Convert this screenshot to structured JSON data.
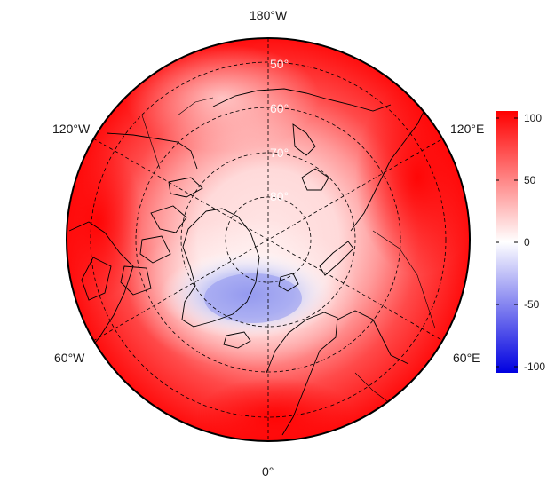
{
  "map": {
    "projection": "north-polar-stereographic",
    "center_pole": "North Pole",
    "longitude_labels": [
      {
        "id": "lon-180w",
        "text": "180°W"
      },
      {
        "id": "lon-120w",
        "text": "120°W"
      },
      {
        "id": "lon-120e",
        "text": "120°E"
      },
      {
        "id": "lon-60w",
        "text": "60°W"
      },
      {
        "id": "lon-60e",
        "text": "60°E"
      },
      {
        "id": "lon-0",
        "text": "0°"
      }
    ],
    "latitude_labels": [
      {
        "id": "lat-50",
        "text": "50°"
      },
      {
        "id": "lat-60",
        "text": "60°"
      },
      {
        "id": "lat-70",
        "text": "70°"
      },
      {
        "id": "lat-80",
        "text": "80°"
      }
    ],
    "colors": {
      "high": "#ff0000",
      "mid": "#ffffff",
      "low": "#0000ff"
    },
    "field_description_visible": "red (positive) over most of hemisphere, blue (negative) anomaly over Greenland / North Atlantic"
  },
  "colorbar": {
    "min": -100,
    "max": 100,
    "ticks": [
      {
        "value": 100,
        "label": "100"
      },
      {
        "value": 50,
        "label": "50"
      },
      {
        "value": 0,
        "label": "0"
      },
      {
        "value": -50,
        "label": "-50"
      },
      {
        "value": -100,
        "label": "-100"
      }
    ]
  }
}
